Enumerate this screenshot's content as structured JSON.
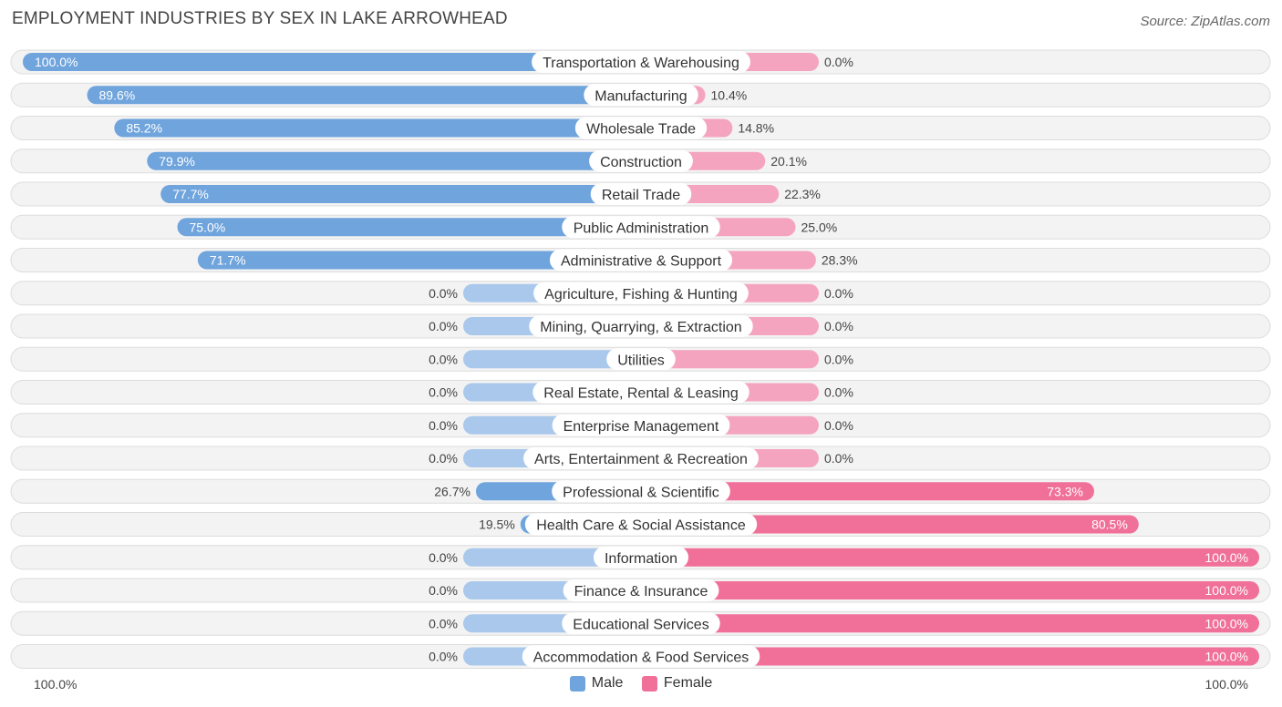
{
  "chart_data": {
    "type": "bar",
    "orientation": "horizontal-diverging",
    "title": "EMPLOYMENT INDUSTRIES BY SEX IN LAKE ARROWHEAD",
    "source": "Source: ZipAtlas.com",
    "categories": [
      "Transportation & Warehousing",
      "Manufacturing",
      "Wholesale Trade",
      "Construction",
      "Retail Trade",
      "Public Administration",
      "Administrative & Support",
      "Agriculture, Fishing & Hunting",
      "Mining, Quarrying, & Extraction",
      "Utilities",
      "Real Estate, Rental & Leasing",
      "Enterprise Management",
      "Arts, Entertainment & Recreation",
      "Professional & Scientific",
      "Health Care & Social Assistance",
      "Information",
      "Finance & Insurance",
      "Educational Services",
      "Accommodation & Food Services"
    ],
    "series": [
      {
        "name": "Male",
        "color": "#6fa4dd",
        "color_light": "#a9c8ec",
        "values": [
          100.0,
          89.6,
          85.2,
          79.9,
          77.7,
          75.0,
          71.7,
          0.0,
          0.0,
          0.0,
          0.0,
          0.0,
          0.0,
          26.7,
          19.5,
          0.0,
          0.0,
          0.0,
          0.0
        ],
        "labels": [
          "100.0%",
          "89.6%",
          "85.2%",
          "79.9%",
          "77.7%",
          "75.0%",
          "71.7%",
          "0.0%",
          "0.0%",
          "0.0%",
          "0.0%",
          "0.0%",
          "0.0%",
          "26.7%",
          "19.5%",
          "0.0%",
          "0.0%",
          "0.0%",
          "0.0%"
        ]
      },
      {
        "name": "Female",
        "color": "#f07099",
        "color_light": "#f5a4bf",
        "values": [
          0.0,
          10.4,
          14.8,
          20.1,
          22.3,
          25.0,
          28.3,
          0.0,
          0.0,
          0.0,
          0.0,
          0.0,
          0.0,
          73.3,
          80.5,
          100.0,
          100.0,
          100.0,
          100.0
        ],
        "labels": [
          "0.0%",
          "10.4%",
          "14.8%",
          "20.1%",
          "22.3%",
          "25.0%",
          "28.3%",
          "0.0%",
          "0.0%",
          "0.0%",
          "0.0%",
          "0.0%",
          "0.0%",
          "73.3%",
          "80.5%",
          "100.0%",
          "100.0%",
          "100.0%",
          "100.0%"
        ]
      }
    ],
    "xlim": [
      -100,
      100
    ],
    "axis_left_label": "100.0%",
    "axis_right_label": "100.0%",
    "legend": [
      "Male",
      "Female"
    ]
  }
}
